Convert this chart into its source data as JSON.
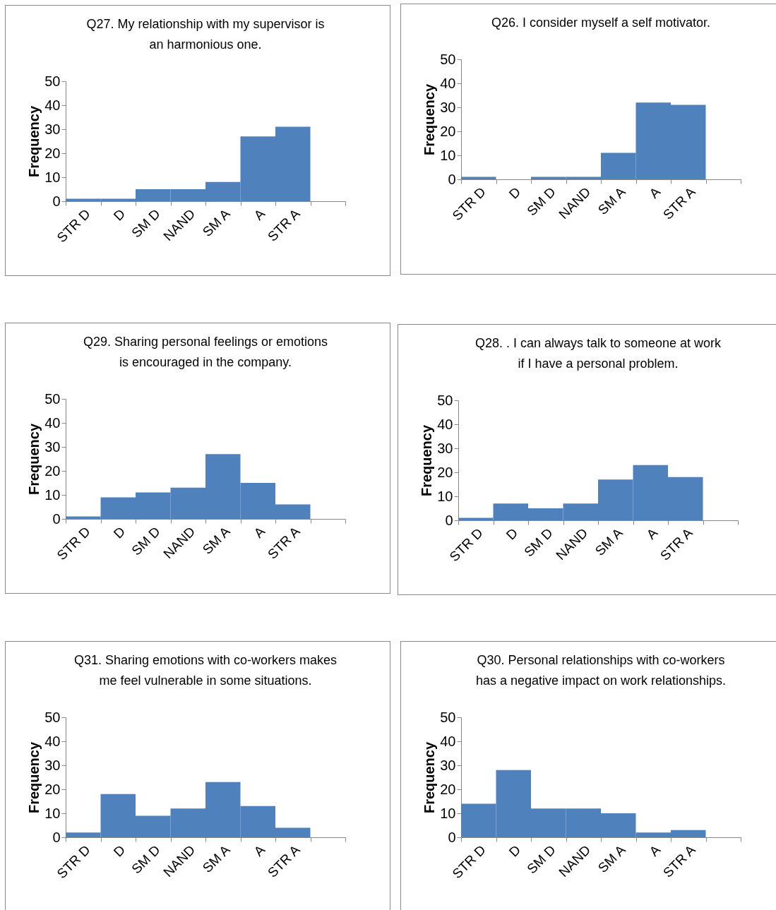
{
  "chart_data": [
    {
      "type": "bar",
      "title": "Q27. My relationship with my supervisor is an harmonious one.",
      "ylabel": "Frequency",
      "categories": [
        "STR D",
        "D",
        "SM D",
        "NAND",
        "SM A",
        "A",
        "STR A",
        null
      ],
      "values": [
        1,
        1,
        5,
        5,
        8,
        27,
        31,
        null
      ],
      "color": "#4f81bd",
      "ylim": [
        0,
        50
      ],
      "yticks": [
        0,
        10,
        20,
        30,
        40,
        50
      ]
    },
    {
      "type": "bar",
      "title": "Q26. I consider myself a self motivator.",
      "ylabel": "Frequency",
      "categories": [
        "STR D",
        "D",
        "SM D",
        "NAND",
        "SM A",
        "A",
        "STR A",
        null
      ],
      "values": [
        1,
        0,
        1,
        1,
        11,
        32,
        31,
        null
      ],
      "color": "#4f81bd",
      "ylim": [
        0,
        50
      ],
      "yticks": [
        0,
        10,
        20,
        30,
        40,
        50
      ]
    },
    {
      "type": "bar",
      "title": "Q29. Sharing personal feelings or emotions is encouraged in the company.",
      "ylabel": "Frequency",
      "categories": [
        "STR D",
        "D",
        "SM D",
        "NAND",
        "SM A",
        "A",
        "STR A",
        null
      ],
      "values": [
        1,
        9,
        11,
        13,
        27,
        15,
        6,
        null
      ],
      "color": "#4f81bd",
      "ylim": [
        0,
        50
      ],
      "yticks": [
        0,
        10,
        20,
        30,
        40,
        50
      ]
    },
    {
      "type": "bar",
      "title": "Q28. . I can always talk to someone at work if I have a personal problem.",
      "ylabel": "Frequency",
      "categories": [
        "STR D",
        "D",
        "SM D",
        "NAND",
        "SM A",
        "A",
        "STR A",
        null
      ],
      "values": [
        1,
        7,
        5,
        7,
        17,
        23,
        18,
        null
      ],
      "color": "#4f81bd",
      "ylim": [
        0,
        50
      ],
      "yticks": [
        0,
        10,
        20,
        30,
        40,
        50
      ]
    },
    {
      "type": "bar",
      "title": "Q31. Sharing emotions with co-workers makes me feel vulnerable in some situations.",
      "ylabel": "Frequency",
      "categories": [
        "STR D",
        "D",
        "SM D",
        "NAND",
        "SM A",
        "A",
        "STR A",
        null
      ],
      "values": [
        2,
        18,
        9,
        12,
        23,
        13,
        4,
        null
      ],
      "color": "#4f81bd",
      "ylim": [
        0,
        50
      ],
      "yticks": [
        0,
        10,
        20,
        30,
        40,
        50
      ]
    },
    {
      "type": "bar",
      "title": "Q30. Personal relationships with co-workers has a negative impact on work relationships.",
      "ylabel": "Frequency",
      "categories": [
        "STR D",
        "D",
        "SM D",
        "NAND",
        "SM A",
        "A",
        "STR A",
        null
      ],
      "values": [
        14,
        28,
        12,
        12,
        10,
        2,
        3,
        null
      ],
      "color": "#4f81bd",
      "ylim": [
        0,
        50
      ],
      "yticks": [
        0,
        10,
        20,
        30,
        40,
        50
      ]
    }
  ]
}
